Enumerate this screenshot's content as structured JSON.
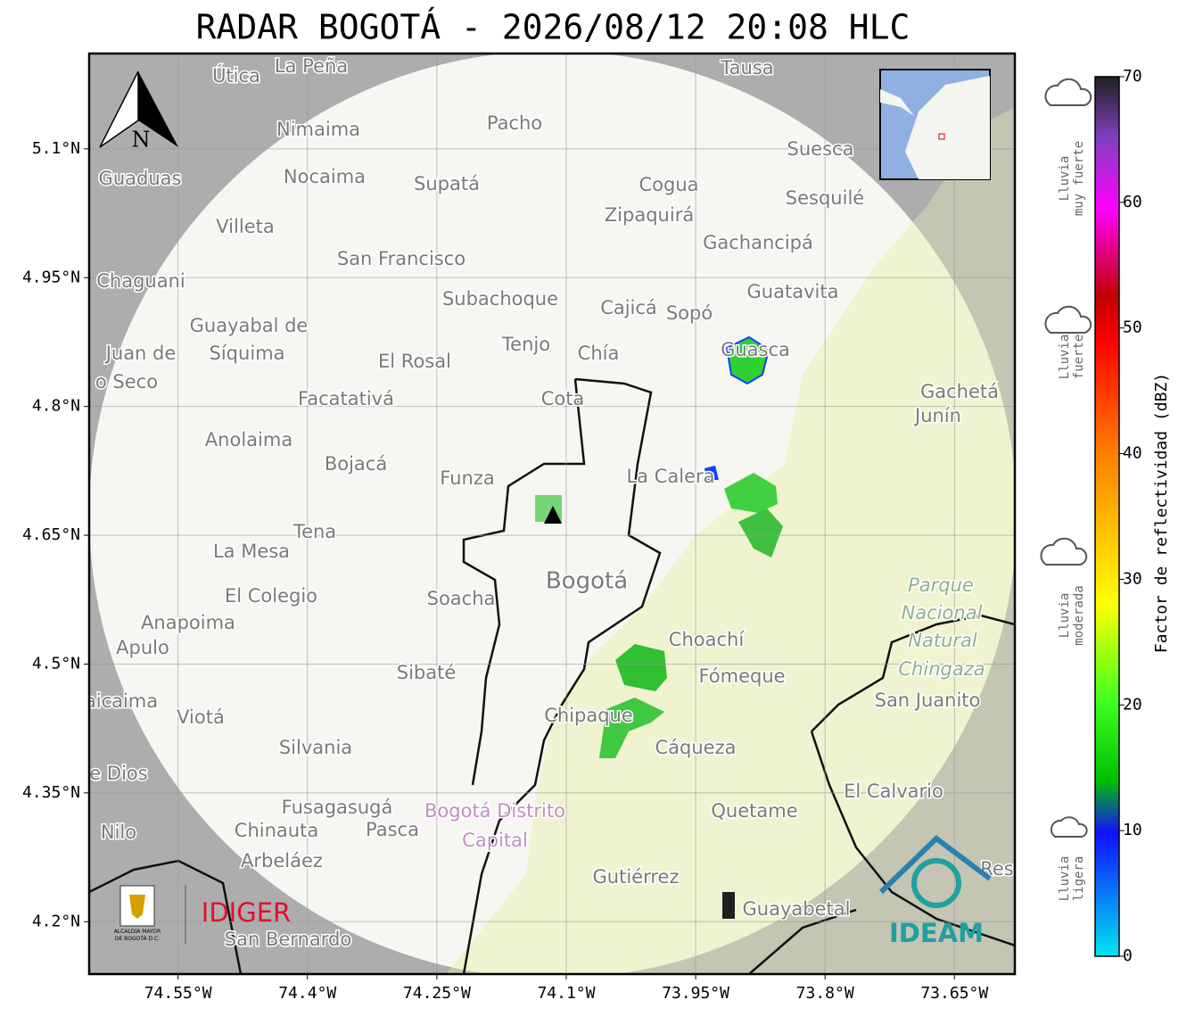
{
  "title": "RADAR BOGOTÁ - 2026/08/12 20:08 HLC",
  "north_label": "N",
  "axes": {
    "xlim": [
      -74.653,
      -73.58
    ],
    "ylim": [
      4.139,
      5.211
    ],
    "xticks": [
      {
        "value": -74.55,
        "label": "74.55°W"
      },
      {
        "value": -74.4,
        "label": "74.4°W"
      },
      {
        "value": -74.25,
        "label": "74.25°W"
      },
      {
        "value": -74.1,
        "label": "74.1°W"
      },
      {
        "value": -73.95,
        "label": "73.95°W"
      },
      {
        "value": -73.8,
        "label": "73.8°W"
      },
      {
        "value": -73.65,
        "label": "73.65°W"
      }
    ],
    "yticks": [
      {
        "value": 5.1,
        "label": "5.1°N"
      },
      {
        "value": 4.95,
        "label": "4.95°N"
      },
      {
        "value": 4.8,
        "label": "4.8°N"
      },
      {
        "value": 4.65,
        "label": "4.65°N"
      },
      {
        "value": 4.5,
        "label": "4.5°N"
      },
      {
        "value": 4.35,
        "label": "4.35°N"
      },
      {
        "value": 4.2,
        "label": "4.2°N"
      }
    ]
  },
  "places": [
    "La Peña",
    "Útica",
    "Tausa",
    "Pacho",
    "Nimaima",
    "Suesca",
    "Guaduas",
    "Nocaima",
    "Supatá",
    "Cogua",
    "Sesquilé",
    "Zipaquirá",
    "Villeta",
    "Gachancipá",
    "San Francisco",
    "Chaguani",
    "Guatavita",
    "Subachoque",
    "Cajicá",
    "Sopó",
    "Guayabal de",
    "Síquima",
    "Tenjo",
    "Juan de",
    "Chía",
    "Guasca",
    "El Rosal",
    "o Seco",
    "Gachetá",
    "Facatativá",
    "Cota",
    "Junín",
    "Anolaima",
    "Bojacá",
    "Funza",
    "La Calera",
    "Tena",
    "La Mesa",
    "Bogotá",
    "El Colegio",
    "Soacha",
    "Anapoima",
    "Apulo",
    "Choachí",
    "Sibaté",
    "Fómeque",
    "aicaima",
    "San Juanito",
    "Viotá",
    "Chipaque",
    "Silvania",
    "Cáqueza",
    "e Dios",
    "El Calvario",
    "Fusagasugá",
    "Quetame",
    "Nilo",
    "Chinauta",
    "Pasca",
    "Arbeláez",
    "Gutiérrez",
    "Guayabetal",
    "San Bernardo",
    "Res"
  ],
  "park_label": [
    "Parque",
    "Nacional",
    "Natural",
    "Chingaza"
  ],
  "district_label": [
    "Bogotá Distrito",
    "Capital"
  ],
  "colorbar": {
    "label": "Factor de reflectividad (dBZ)",
    "lim": [
      0,
      70
    ],
    "ticks": [
      0,
      10,
      20,
      30,
      40,
      50,
      60,
      70
    ]
  },
  "legend": [
    [
      "Lluvia",
      "muy fuerte"
    ],
    [
      "Lluvia",
      "fuerte"
    ],
    [
      "Lluvia",
      "moderada"
    ],
    [
      "Lluvia",
      "ligera"
    ]
  ],
  "logos": {
    "alcaldia": [
      "ALCALDÍA MAYOR",
      "DE BOGOTÁ D.C."
    ],
    "idiger": "IDIGER",
    "ideam": "IDEAM"
  }
}
